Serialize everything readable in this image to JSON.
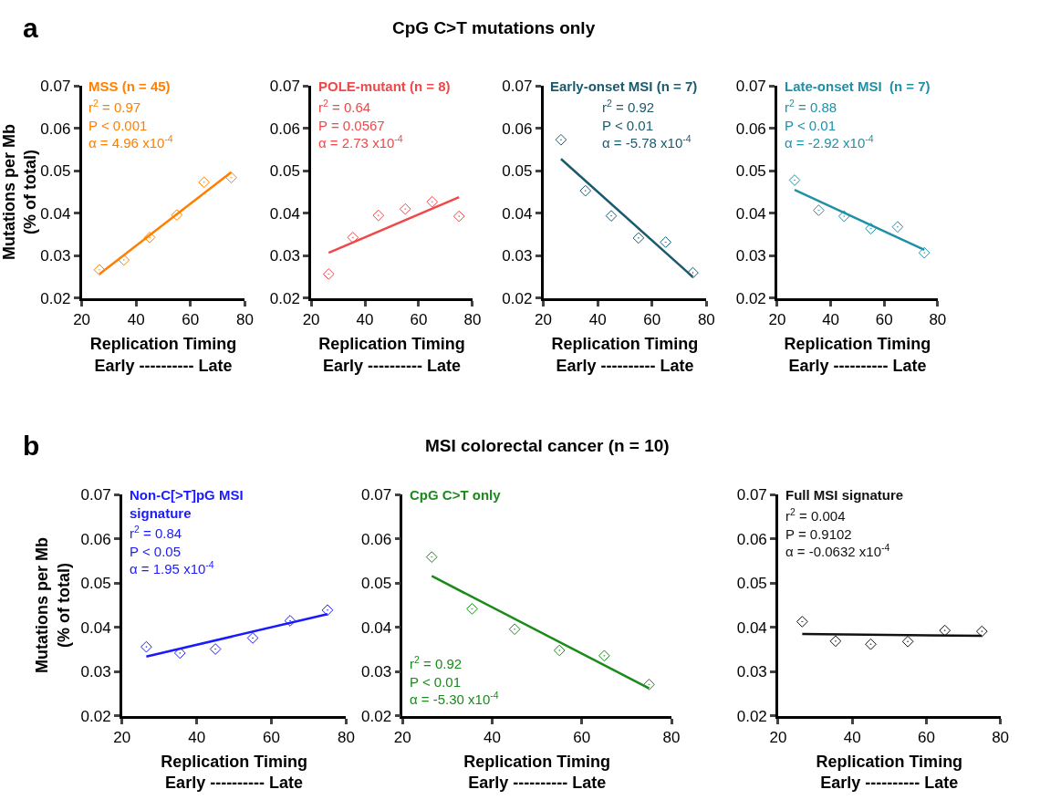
{
  "chart_data": [
    {
      "type": "scatter",
      "annotations": [
        "a"
      ],
      "subtitle": "r$^{2}$ = 0.97\nP < 0.001\nα = 4.96 x10$^{-4}$",
      "xlabel": "Replication Timing\nEarly ---------- Late",
      "ylabel": "Mutations per Mb\n(% of total)",
      "xlim": [
        20,
        80
      ],
      "xticks": [
        20,
        40,
        60,
        80
      ],
      "ylim": [
        0.02,
        0.07
      ],
      "yticks": [
        0.02,
        0.03,
        0.04,
        0.05,
        0.06,
        0.07
      ],
      "series": [
        {
          "name": "MSS (n = 45)",
          "color": "#ff8000",
          "marker": "diamond",
          "x": [
            26.5,
            35.5,
            45,
            55,
            65,
            75
          ],
          "values": [
            0.0267,
            0.029,
            0.0343,
            0.0396,
            0.0473,
            0.0484
          ]
        },
        {
          "type": "line",
          "color": "#ff8000",
          "x": [
            26.5,
            75
          ],
          "values": [
            0.0257,
            0.0497
          ]
        }
      ]
    },
    {
      "type": "scatter",
      "title": "CpG C>T mutations only",
      "subtitle": "r$^{2}$ = 0.64\nP = 0.0567\nα = 2.73 x10$^{-4}$",
      "xlabel": "Replication Timing\nEarly ---------- Late",
      "xlim": [
        20,
        80
      ],
      "xticks": [
        20,
        40,
        60,
        80
      ],
      "ylim": [
        0.02,
        0.07
      ],
      "yticks": [
        0.02,
        0.03,
        0.04,
        0.05,
        0.06,
        0.07
      ],
      "series": [
        {
          "name": "POLE-mutant (n = 8)",
          "color": "#f04848",
          "marker": "diamond",
          "x": [
            26.5,
            35.5,
            45,
            55,
            65,
            75
          ],
          "values": [
            0.0257,
            0.0343,
            0.0395,
            0.041,
            0.0427,
            0.0393
          ]
        },
        {
          "type": "line",
          "color": "#f04848",
          "x": [
            26.5,
            75
          ],
          "values": [
            0.0307,
            0.0438
          ]
        }
      ]
    },
    {
      "type": "scatter",
      "subtitle": "r$^{2}$ = 0.92\nP < 0.01\nα = -5.78 x10$^{-4}$",
      "xlabel": "Replication Timing\nEarly ---------- Late",
      "xlim": [
        20,
        80
      ],
      "xticks": [
        20,
        40,
        60,
        80
      ],
      "ylim": [
        0.02,
        0.07
      ],
      "yticks": [
        0.02,
        0.03,
        0.04,
        0.05,
        0.06,
        0.07
      ],
      "series": [
        {
          "name": "Early-onset MSI (n = 7)",
          "color": "#1a5a6e",
          "marker": "diamond",
          "x": [
            26.5,
            35.5,
            45,
            55,
            65,
            75
          ],
          "values": [
            0.0573,
            0.0453,
            0.0394,
            0.0342,
            0.0332,
            0.026
          ]
        },
        {
          "type": "line",
          "color": "#1a5a6e",
          "x": [
            26.5,
            75
          ],
          "values": [
            0.0528,
            0.025
          ]
        }
      ]
    },
    {
      "type": "scatter",
      "subtitle": "r$^{2}$ = 0.88\nP < 0.01\nα = -2.92 x10$^{-4}$",
      "xlabel": "Replication Timing\nEarly ---------- Late",
      "xlim": [
        20,
        80
      ],
      "xticks": [
        20,
        40,
        60,
        80
      ],
      "ylim": [
        0.02,
        0.07
      ],
      "yticks": [
        0.02,
        0.03,
        0.04,
        0.05,
        0.06,
        0.07
      ],
      "series": [
        {
          "name": "Late-onset MSI  (n = 7)",
          "color": "#2090a8",
          "marker": "diamond",
          "x": [
            26.5,
            35.5,
            45,
            55,
            65,
            75
          ],
          "values": [
            0.0478,
            0.0407,
            0.0393,
            0.0364,
            0.0368,
            0.0307
          ]
        },
        {
          "type": "line",
          "color": "#2090a8",
          "x": [
            26.5,
            75
          ],
          "values": [
            0.0455,
            0.0314
          ]
        }
      ]
    },
    {
      "type": "scatter",
      "annotations": [
        "b"
      ],
      "subtitle": "r$^{2}$ = 0.84\nP < 0.05\nα = 1.95 x10$^{-4}$",
      "xlabel": "Replication Timing\nEarly ---------- Late",
      "ylabel": "Mutations per Mb\n(% of total)",
      "xlim": [
        20,
        80
      ],
      "xticks": [
        20,
        40,
        60,
        80
      ],
      "ylim": [
        0.02,
        0.07
      ],
      "yticks": [
        0.02,
        0.03,
        0.04,
        0.05,
        0.06,
        0.07
      ],
      "series": [
        {
          "name": "Non-C[>T]pG MSI\nsignature",
          "color": "#1a1aff",
          "marker": "diamond",
          "x": [
            26.5,
            35.5,
            45,
            55,
            65,
            75
          ],
          "values": [
            0.0356,
            0.0342,
            0.0351,
            0.0376,
            0.0415,
            0.0439
          ]
        },
        {
          "type": "line",
          "color": "#1a1aff",
          "x": [
            26.5,
            75
          ],
          "values": [
            0.0334,
            0.043
          ]
        }
      ]
    },
    {
      "type": "scatter",
      "title": "MSI colorectal cancer (n = 10)",
      "subtitle": "r$^{2}$ = 0.92\nP < 0.01\nα = -5.30 x10$^{-4}$",
      "xlabel": "Replication Timing\nEarly ---------- Late",
      "xlim": [
        20,
        80
      ],
      "xticks": [
        20,
        40,
        60,
        80
      ],
      "ylim": [
        0.02,
        0.07
      ],
      "yticks": [
        0.02,
        0.03,
        0.04,
        0.05,
        0.06,
        0.07
      ],
      "series": [
        {
          "name": "CpG C>T only",
          "color": "#1a8a1a",
          "marker": "diamond",
          "x": [
            26.5,
            35.5,
            45,
            55,
            65,
            75
          ],
          "values": [
            0.0559,
            0.0442,
            0.0396,
            0.0348,
            0.0336,
            0.0271
          ]
        },
        {
          "type": "line",
          "color": "#1a8a1a",
          "x": [
            26.5,
            75
          ],
          "values": [
            0.0516,
            0.0262
          ]
        }
      ]
    },
    {
      "type": "scatter",
      "subtitle": "r$^{2}$ = 0.004\nP = 0.9102\nα = -0.0632 x10$^{-4}$",
      "xlabel": "Replication Timing\nEarly ---------- Late",
      "xlim": [
        20,
        80
      ],
      "xticks": [
        20,
        40,
        60,
        80
      ],
      "ylim": [
        0.02,
        0.07
      ],
      "yticks": [
        0.02,
        0.03,
        0.04,
        0.05,
        0.06,
        0.07
      ],
      "series": [
        {
          "name": "Full MSI signature",
          "color": "#111111",
          "marker": "diamond",
          "x": [
            26.5,
            35.5,
            45,
            55,
            65,
            75
          ],
          "values": [
            0.0413,
            0.0369,
            0.0362,
            0.0368,
            0.0393,
            0.0391
          ]
        },
        {
          "type": "line",
          "color": "#111111",
          "x": [
            26.5,
            75
          ],
          "values": [
            0.0385,
            0.0381
          ]
        }
      ]
    }
  ]
}
